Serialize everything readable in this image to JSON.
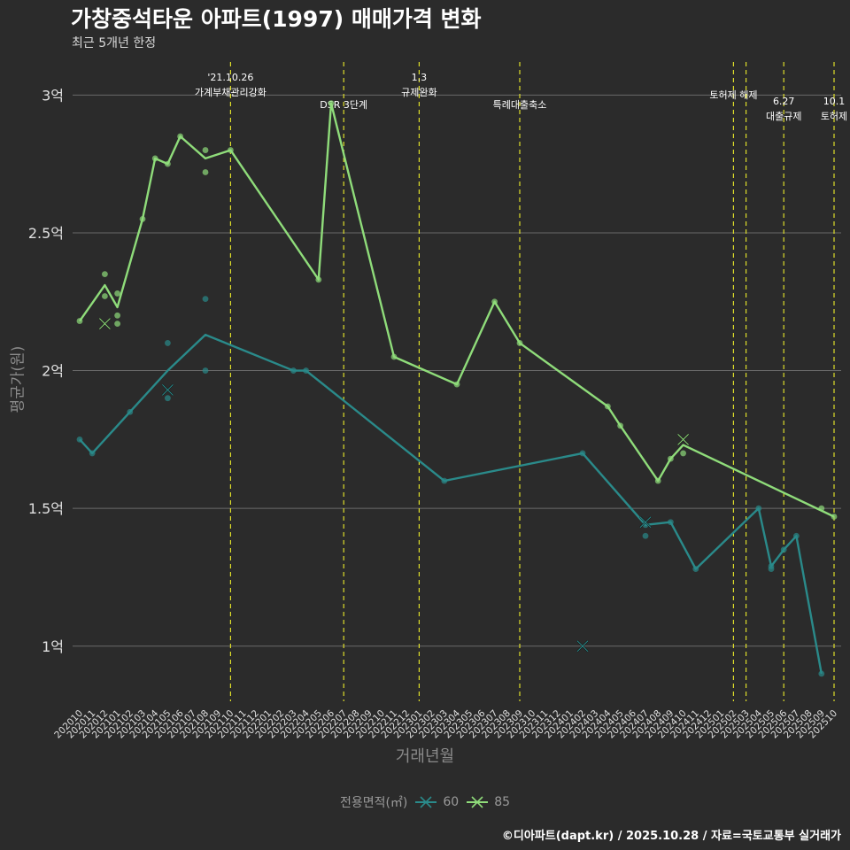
{
  "title": "가창중석타운 아파트(1997) 매매가격 변화",
  "subtitle": "최근 5개년 한정",
  "caption": "©디아파트(dapt.kr) / 2025.10.28 / 자료=국토교통부 실거래가",
  "chart_data": {
    "type": "line",
    "xlabel": "거래년월",
    "ylabel": "평균가(원)",
    "categories": [
      "202010",
      "202011",
      "202012",
      "202101",
      "202102",
      "202103",
      "202104",
      "202105",
      "202106",
      "202107",
      "202108",
      "202109",
      "202110",
      "202111",
      "202112",
      "202201",
      "202202",
      "202203",
      "202204",
      "202205",
      "202206",
      "202207",
      "202208",
      "202209",
      "202210",
      "202211",
      "202212",
      "202301",
      "202302",
      "202303",
      "202304",
      "202305",
      "202306",
      "202307",
      "202308",
      "202309",
      "202310",
      "202311",
      "202312",
      "202401",
      "202402",
      "202403",
      "202404",
      "202405",
      "202406",
      "202407",
      "202408",
      "202409",
      "202410",
      "202411",
      "202412",
      "202501",
      "202502",
      "202503",
      "202504",
      "202505",
      "202506",
      "202507",
      "202508",
      "202509",
      "202510"
    ],
    "yticks": [
      {
        "v": 1.0,
        "label": "1억"
      },
      {
        "v": 1.5,
        "label": "1.5억"
      },
      {
        "v": 2.0,
        "label": "2억"
      },
      {
        "v": 2.5,
        "label": "2.5억"
      },
      {
        "v": 3.0,
        "label": "3억"
      }
    ],
    "ylim": [
      0.8,
      3.12
    ],
    "colors": {
      "s60": "#2a8a8a",
      "s85": "#8fdc7a",
      "vline": "#dede2a",
      "grid": "#6a6a6a"
    },
    "series": [
      {
        "name": "60",
        "color": "#2a8a8a",
        "line": [
          [
            0,
            1.75
          ],
          [
            1,
            1.7
          ],
          [
            4,
            1.85
          ],
          [
            7,
            2.0
          ],
          [
            10,
            2.13
          ],
          [
            17,
            2.0
          ],
          [
            18,
            2.0
          ],
          [
            29,
            1.6
          ],
          [
            40,
            1.7
          ],
          [
            45,
            1.44
          ],
          [
            47,
            1.45
          ],
          [
            49,
            1.28
          ],
          [
            54,
            1.5
          ],
          [
            55,
            1.29
          ],
          [
            56,
            1.35
          ],
          [
            57,
            1.4
          ],
          [
            59,
            0.9
          ]
        ],
        "points": [
          [
            0,
            1.75
          ],
          [
            1,
            1.7
          ],
          [
            4,
            1.85
          ],
          [
            7,
            2.1
          ],
          [
            7,
            1.9
          ],
          [
            10,
            2.26
          ],
          [
            10,
            2.0
          ],
          [
            17,
            2.0
          ],
          [
            18,
            2.0
          ],
          [
            29,
            1.6
          ],
          [
            40,
            1.7
          ],
          [
            45,
            1.44
          ],
          [
            45,
            1.4
          ],
          [
            47,
            1.45
          ],
          [
            49,
            1.28
          ],
          [
            54,
            1.5
          ],
          [
            55,
            1.29
          ],
          [
            55,
            1.28
          ],
          [
            56,
            1.35
          ],
          [
            57,
            1.4
          ],
          [
            59,
            0.9
          ]
        ],
        "crosses": [
          [
            7,
            1.93
          ],
          [
            40,
            1.0
          ],
          [
            45,
            1.45
          ]
        ]
      },
      {
        "name": "85",
        "color": "#8fdc7a",
        "line": [
          [
            0,
            2.18
          ],
          [
            2,
            2.31
          ],
          [
            3,
            2.23
          ],
          [
            5,
            2.55
          ],
          [
            6,
            2.77
          ],
          [
            7,
            2.75
          ],
          [
            8,
            2.85
          ],
          [
            10,
            2.77
          ],
          [
            12,
            2.8
          ],
          [
            19,
            2.33
          ],
          [
            20,
            2.97
          ],
          [
            25,
            2.05
          ],
          [
            30,
            1.95
          ],
          [
            33,
            2.25
          ],
          [
            35,
            2.1
          ],
          [
            42,
            1.87
          ],
          [
            43,
            1.8
          ],
          [
            46,
            1.6
          ],
          [
            47,
            1.68
          ],
          [
            48,
            1.73
          ],
          [
            60,
            1.47
          ]
        ],
        "points": [
          [
            0,
            2.18
          ],
          [
            2,
            2.35
          ],
          [
            2,
            2.27
          ],
          [
            3,
            2.28
          ],
          [
            3,
            2.2
          ],
          [
            3,
            2.17
          ],
          [
            5,
            2.55
          ],
          [
            6,
            2.77
          ],
          [
            7,
            2.75
          ],
          [
            8,
            2.85
          ],
          [
            10,
            2.8
          ],
          [
            10,
            2.72
          ],
          [
            12,
            2.8
          ],
          [
            19,
            2.33
          ],
          [
            20,
            2.97
          ],
          [
            25,
            2.05
          ],
          [
            30,
            1.95
          ],
          [
            33,
            2.25
          ],
          [
            35,
            2.1
          ],
          [
            42,
            1.87
          ],
          [
            43,
            1.8
          ],
          [
            46,
            1.6
          ],
          [
            47,
            1.68
          ],
          [
            48,
            1.7
          ],
          [
            59,
            1.5
          ],
          [
            60,
            1.47
          ]
        ],
        "crosses": [
          [
            2,
            2.17
          ],
          [
            48,
            1.75
          ]
        ]
      }
    ],
    "annotations": [
      {
        "x": 12.0,
        "lines": [
          "'21.10.26",
          "가계부채관리강화"
        ],
        "row": 0
      },
      {
        "x": 21.0,
        "lines": [
          "DSR 3단계"
        ],
        "row": 1
      },
      {
        "x": 27.0,
        "lines": [
          "1.3",
          "규제완화"
        ],
        "row": 0
      },
      {
        "x": 35.0,
        "lines": [
          "특례대출축소"
        ],
        "row": 1
      },
      {
        "x": 52.0,
        "lines": [
          "토허제 해제"
        ],
        "row": 0.5
      },
      {
        "x": 53.0,
        "lines": [],
        "row": 0
      },
      {
        "x": 56.0,
        "lines": [
          "6.27",
          "대출규제"
        ],
        "row": 1
      },
      {
        "x": 60.0,
        "lines": [
          "10.1",
          "토허제"
        ],
        "row": 1
      }
    ]
  },
  "legend": {
    "title": "전용면적(㎡)",
    "items": [
      "60",
      "85"
    ]
  }
}
